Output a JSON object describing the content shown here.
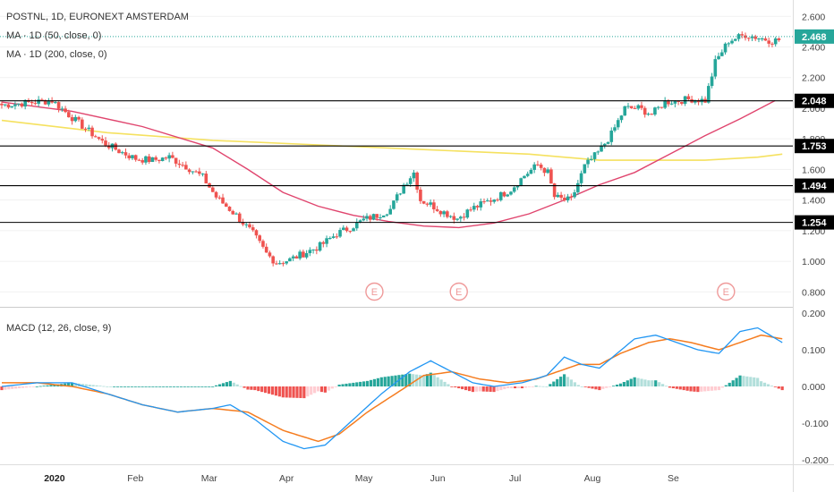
{
  "header": {
    "symbol_line": "POSTNL, 1D, EURONEXT AMSTERDAM",
    "ma50_label": "MA · 1D (50, close, 0)",
    "ma200_label": "MA · 1D (200, close, 0)"
  },
  "macd_label": "MACD (12, 26, close, 9)",
  "colors": {
    "up": "#26a69a",
    "down": "#ef5350",
    "ma50": "#e0456e",
    "ma200": "#f5e15f",
    "macd_line": "#2196f3",
    "signal_line": "#f57c1f",
    "hist_up_strong": "#26a69a",
    "hist_up_weak": "#b2dfdb",
    "hist_down_strong": "#ef5350",
    "hist_down_weak": "#ffcdd2",
    "earnings": "#ef9a9a",
    "hline": "#000000",
    "last_price": "#26a69a"
  },
  "chart_data": [
    {
      "type": "candlestick",
      "title": "POSTNL, 1D, EURONEXT AMSTERDAM",
      "x_ticks": [
        "2020",
        "Feb",
        "Mar",
        "Apr",
        "May",
        "Jun",
        "Jul",
        "Aug",
        "Se"
      ],
      "y_ticks": [
        "2.600",
        "2.400",
        "2.200",
        "2.000",
        "1.800",
        "1.600",
        "1.400",
        "1.200",
        "1.000",
        "0.800"
      ],
      "ylim": [
        0.72,
        2.66
      ],
      "trading_days": 170,
      "price_anchors": [
        [
          0,
          2.02
        ],
        [
          10,
          2.04
        ],
        [
          15,
          2.05
        ],
        [
          22,
          1.92
        ],
        [
          30,
          1.78
        ],
        [
          35,
          1.72
        ],
        [
          40,
          1.67
        ],
        [
          45,
          1.66
        ],
        [
          50,
          1.68
        ],
        [
          55,
          1.62
        ],
        [
          60,
          1.55
        ],
        [
          64,
          1.42
        ],
        [
          70,
          1.3
        ],
        [
          75,
          1.18
        ],
        [
          79,
          1.05
        ],
        [
          82,
          0.99
        ],
        [
          86,
          1.01
        ],
        [
          90,
          1.05
        ],
        [
          95,
          1.1
        ],
        [
          100,
          1.18
        ],
        [
          104,
          1.22
        ],
        [
          108,
          1.27
        ],
        [
          112,
          1.3
        ],
        [
          116,
          1.34
        ],
        [
          120,
          1.5
        ],
        [
          123,
          1.58
        ],
        [
          125,
          1.4
        ],
        [
          128,
          1.37
        ],
        [
          132,
          1.32
        ],
        [
          136,
          1.28
        ],
        [
          140,
          1.34
        ],
        [
          144,
          1.38
        ],
        [
          148,
          1.42
        ],
        [
          152,
          1.47
        ],
        [
          156,
          1.56
        ],
        [
          160,
          1.63
        ],
        [
          163,
          1.58
        ],
        [
          165,
          1.42
        ],
        [
          168,
          1.4
        ]
      ],
      "price_anchors_2": [
        [
          0,
          1.4
        ],
        [
          4,
          1.62
        ],
        [
          8,
          1.71
        ],
        [
          12,
          1.83
        ],
        [
          16,
          2.0
        ],
        [
          20,
          2.0
        ],
        [
          24,
          1.96
        ],
        [
          28,
          2.04
        ],
        [
          32,
          2.05
        ],
        [
          36,
          2.06
        ],
        [
          40,
          2.05
        ],
        [
          43,
          2.3
        ],
        [
          47,
          2.44
        ],
        [
          52,
          2.48
        ],
        [
          56,
          2.46
        ],
        [
          60,
          2.44
        ],
        [
          63,
          2.45
        ]
      ],
      "ma50": [
        [
          0,
          2.04
        ],
        [
          20,
          1.98
        ],
        [
          40,
          1.88
        ],
        [
          60,
          1.74
        ],
        [
          70,
          1.6
        ],
        [
          80,
          1.45
        ],
        [
          90,
          1.36
        ],
        [
          100,
          1.3
        ],
        [
          110,
          1.26
        ],
        [
          120,
          1.23
        ],
        [
          130,
          1.22
        ],
        [
          140,
          1.25
        ],
        [
          150,
          1.31
        ],
        [
          160,
          1.4
        ],
        [
          170,
          1.5
        ],
        [
          180,
          1.58
        ],
        [
          190,
          1.7
        ],
        [
          200,
          1.82
        ],
        [
          210,
          1.93
        ],
        [
          220,
          2.05
        ]
      ],
      "ma200": [
        [
          0,
          1.92
        ],
        [
          30,
          1.84
        ],
        [
          60,
          1.79
        ],
        [
          90,
          1.76
        ],
        [
          120,
          1.73
        ],
        [
          150,
          1.7
        ],
        [
          170,
          1.66
        ],
        [
          185,
          1.66
        ],
        [
          200,
          1.66
        ],
        [
          215,
          1.68
        ],
        [
          222,
          1.7
        ]
      ],
      "horizontal_levels": [
        {
          "value": 2.048,
          "label": "2.048"
        },
        {
          "value": 1.753,
          "label": "1.753"
        },
        {
          "value": 1.494,
          "label": "1.494"
        },
        {
          "value": 1.254,
          "label": "1.254"
        }
      ],
      "last_price": {
        "value": 2.468,
        "label": "2.468"
      },
      "earnings_markers": [
        {
          "label": "E",
          "day": 106
        },
        {
          "label": "E",
          "day": 130
        },
        {
          "label": "E",
          "day": 206
        }
      ]
    },
    {
      "type": "line",
      "title": "MACD (12, 26, close, 9)",
      "y_ticks": [
        "0.200",
        "0.100",
        "0.000",
        "-0.100",
        "-0.200"
      ],
      "ylim": [
        -0.21,
        0.21
      ],
      "macd": [
        [
          0,
          0.0
        ],
        [
          10,
          0.01
        ],
        [
          20,
          0.01
        ],
        [
          30,
          -0.02
        ],
        [
          40,
          -0.05
        ],
        [
          50,
          -0.07
        ],
        [
          60,
          -0.06
        ],
        [
          65,
          -0.05
        ],
        [
          72,
          -0.09
        ],
        [
          80,
          -0.15
        ],
        [
          86,
          -0.17
        ],
        [
          92,
          -0.16
        ],
        [
          100,
          -0.09
        ],
        [
          108,
          -0.02
        ],
        [
          116,
          0.04
        ],
        [
          122,
          0.07
        ],
        [
          128,
          0.04
        ],
        [
          134,
          0.01
        ],
        [
          140,
          0.0
        ],
        [
          148,
          0.01
        ],
        [
          155,
          0.03
        ],
        [
          160,
          0.08
        ],
        [
          165,
          0.06
        ],
        [
          170,
          0.05
        ],
        [
          175,
          0.09
        ],
        [
          180,
          0.13
        ],
        [
          186,
          0.14
        ],
        [
          192,
          0.12
        ],
        [
          198,
          0.1
        ],
        [
          204,
          0.09
        ],
        [
          210,
          0.15
        ],
        [
          215,
          0.16
        ],
        [
          222,
          0.12
        ]
      ],
      "signal": [
        [
          0,
          0.01
        ],
        [
          10,
          0.01
        ],
        [
          20,
          0.0
        ],
        [
          30,
          -0.02
        ],
        [
          40,
          -0.05
        ],
        [
          50,
          -0.07
        ],
        [
          60,
          -0.06
        ],
        [
          70,
          -0.07
        ],
        [
          80,
          -0.12
        ],
        [
          90,
          -0.15
        ],
        [
          96,
          -0.13
        ],
        [
          104,
          -0.07
        ],
        [
          112,
          -0.02
        ],
        [
          120,
          0.03
        ],
        [
          128,
          0.04
        ],
        [
          136,
          0.02
        ],
        [
          144,
          0.01
        ],
        [
          152,
          0.02
        ],
        [
          158,
          0.04
        ],
        [
          164,
          0.06
        ],
        [
          170,
          0.06
        ],
        [
          176,
          0.09
        ],
        [
          184,
          0.12
        ],
        [
          190,
          0.13
        ],
        [
          196,
          0.12
        ],
        [
          204,
          0.1
        ],
        [
          210,
          0.12
        ],
        [
          216,
          0.14
        ],
        [
          222,
          0.13
        ]
      ]
    }
  ]
}
